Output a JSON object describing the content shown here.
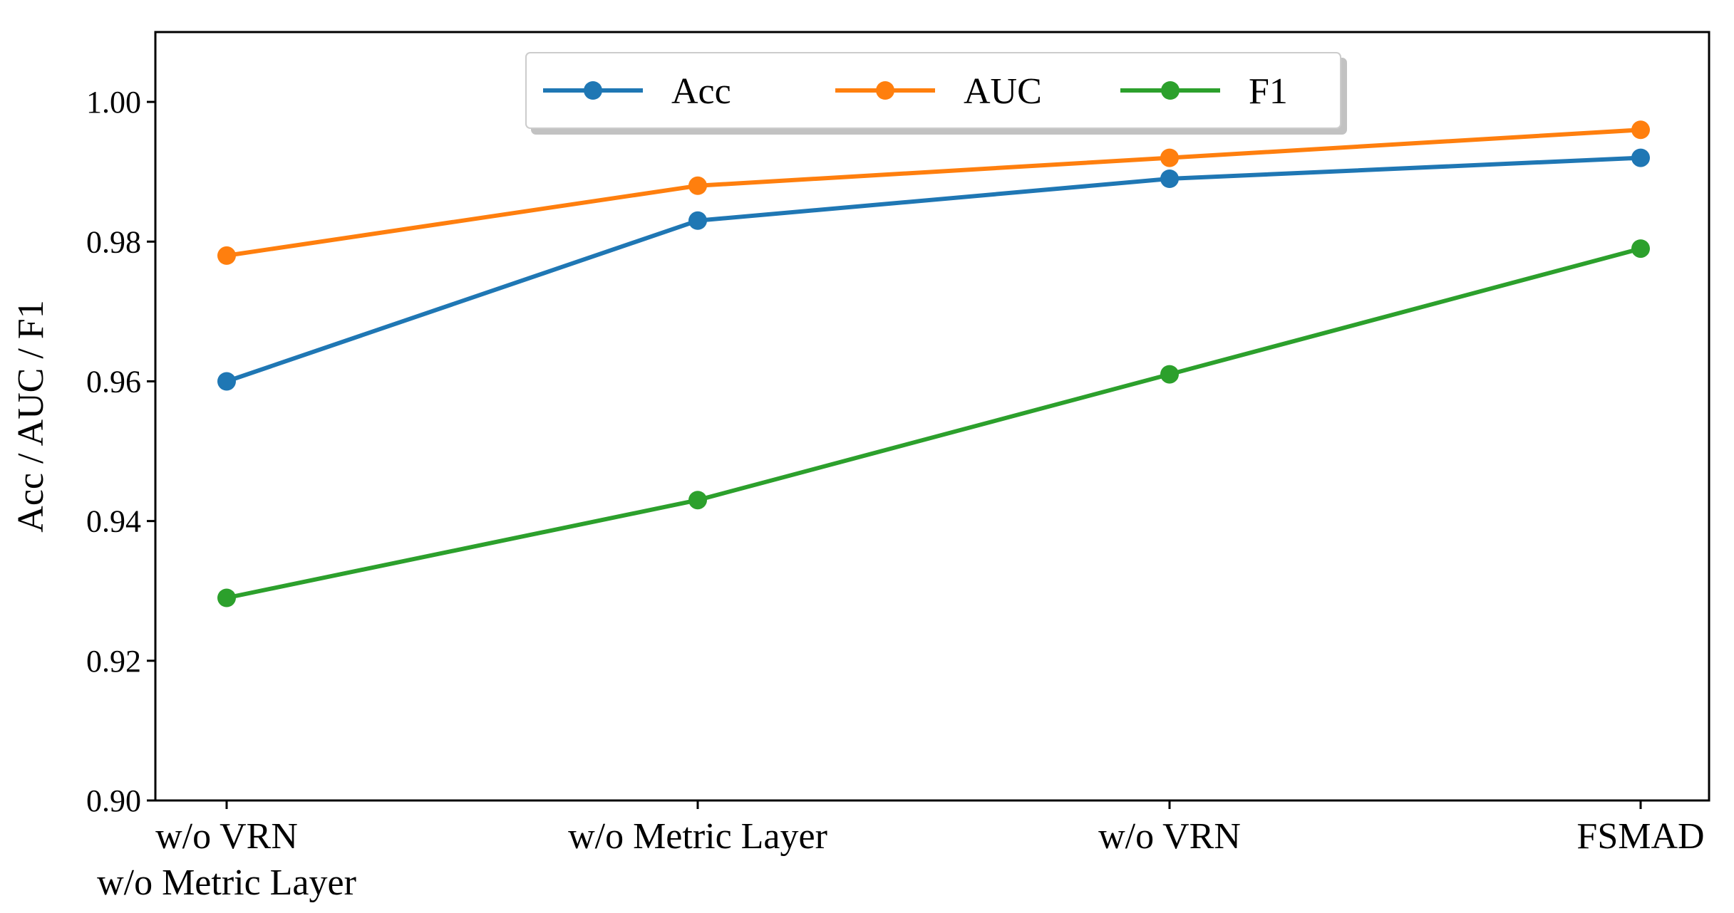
{
  "chart_data": {
    "type": "line",
    "title": "",
    "xlabel": "",
    "ylabel": "Acc / AUC / F1",
    "categories": [
      [
        "w/o VRN",
        "w/o Metric Layer"
      ],
      [
        "w/o Metric Layer"
      ],
      [
        "w/o VRN"
      ],
      [
        "FSMAD"
      ]
    ],
    "series": [
      {
        "name": "Acc",
        "color": "#1f77b4",
        "values": [
          0.96,
          0.983,
          0.989,
          0.992
        ]
      },
      {
        "name": "AUC",
        "color": "#ff7f0e",
        "values": [
          0.978,
          0.988,
          0.992,
          0.996
        ]
      },
      {
        "name": "F1",
        "color": "#2ca02c",
        "values": [
          0.929,
          0.943,
          0.961,
          0.979
        ]
      }
    ],
    "ylim": [
      0.9,
      1.01
    ],
    "yticks": [
      "0.90",
      "0.92",
      "0.94",
      "0.96",
      "0.98",
      "1.00"
    ],
    "grid": false,
    "legend": {
      "placement": "top-center",
      "columns": 3
    }
  }
}
